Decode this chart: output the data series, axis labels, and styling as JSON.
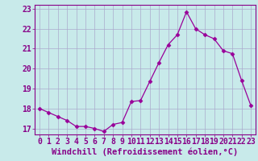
{
  "x": [
    0,
    1,
    2,
    3,
    4,
    5,
    6,
    7,
    8,
    9,
    10,
    11,
    12,
    13,
    14,
    15,
    16,
    17,
    18,
    19,
    20,
    21,
    22,
    23
  ],
  "y": [
    18.0,
    17.8,
    17.6,
    17.4,
    17.1,
    17.1,
    17.0,
    16.85,
    17.2,
    17.3,
    18.35,
    18.4,
    19.35,
    20.3,
    21.2,
    21.7,
    22.85,
    22.0,
    21.7,
    21.5,
    20.9,
    20.75,
    19.4,
    18.15
  ],
  "line_color": "#990099",
  "marker": "D",
  "marker_size": 2.5,
  "bg_color": "#c8eaea",
  "grid_color": "#aaaacc",
  "xlabel": "Windchill (Refroidissement éolien,°C)",
  "xlim": [
    -0.5,
    23.5
  ],
  "ylim": [
    16.7,
    23.2
  ],
  "yticks": [
    17,
    18,
    19,
    20,
    21,
    22,
    23
  ],
  "xticks": [
    0,
    1,
    2,
    3,
    4,
    5,
    6,
    7,
    8,
    9,
    10,
    11,
    12,
    13,
    14,
    15,
    16,
    17,
    18,
    19,
    20,
    21,
    22,
    23
  ],
  "xlabel_fontsize": 7.5,
  "tick_fontsize": 7,
  "tick_color": "#880088",
  "spine_color": "#880088"
}
